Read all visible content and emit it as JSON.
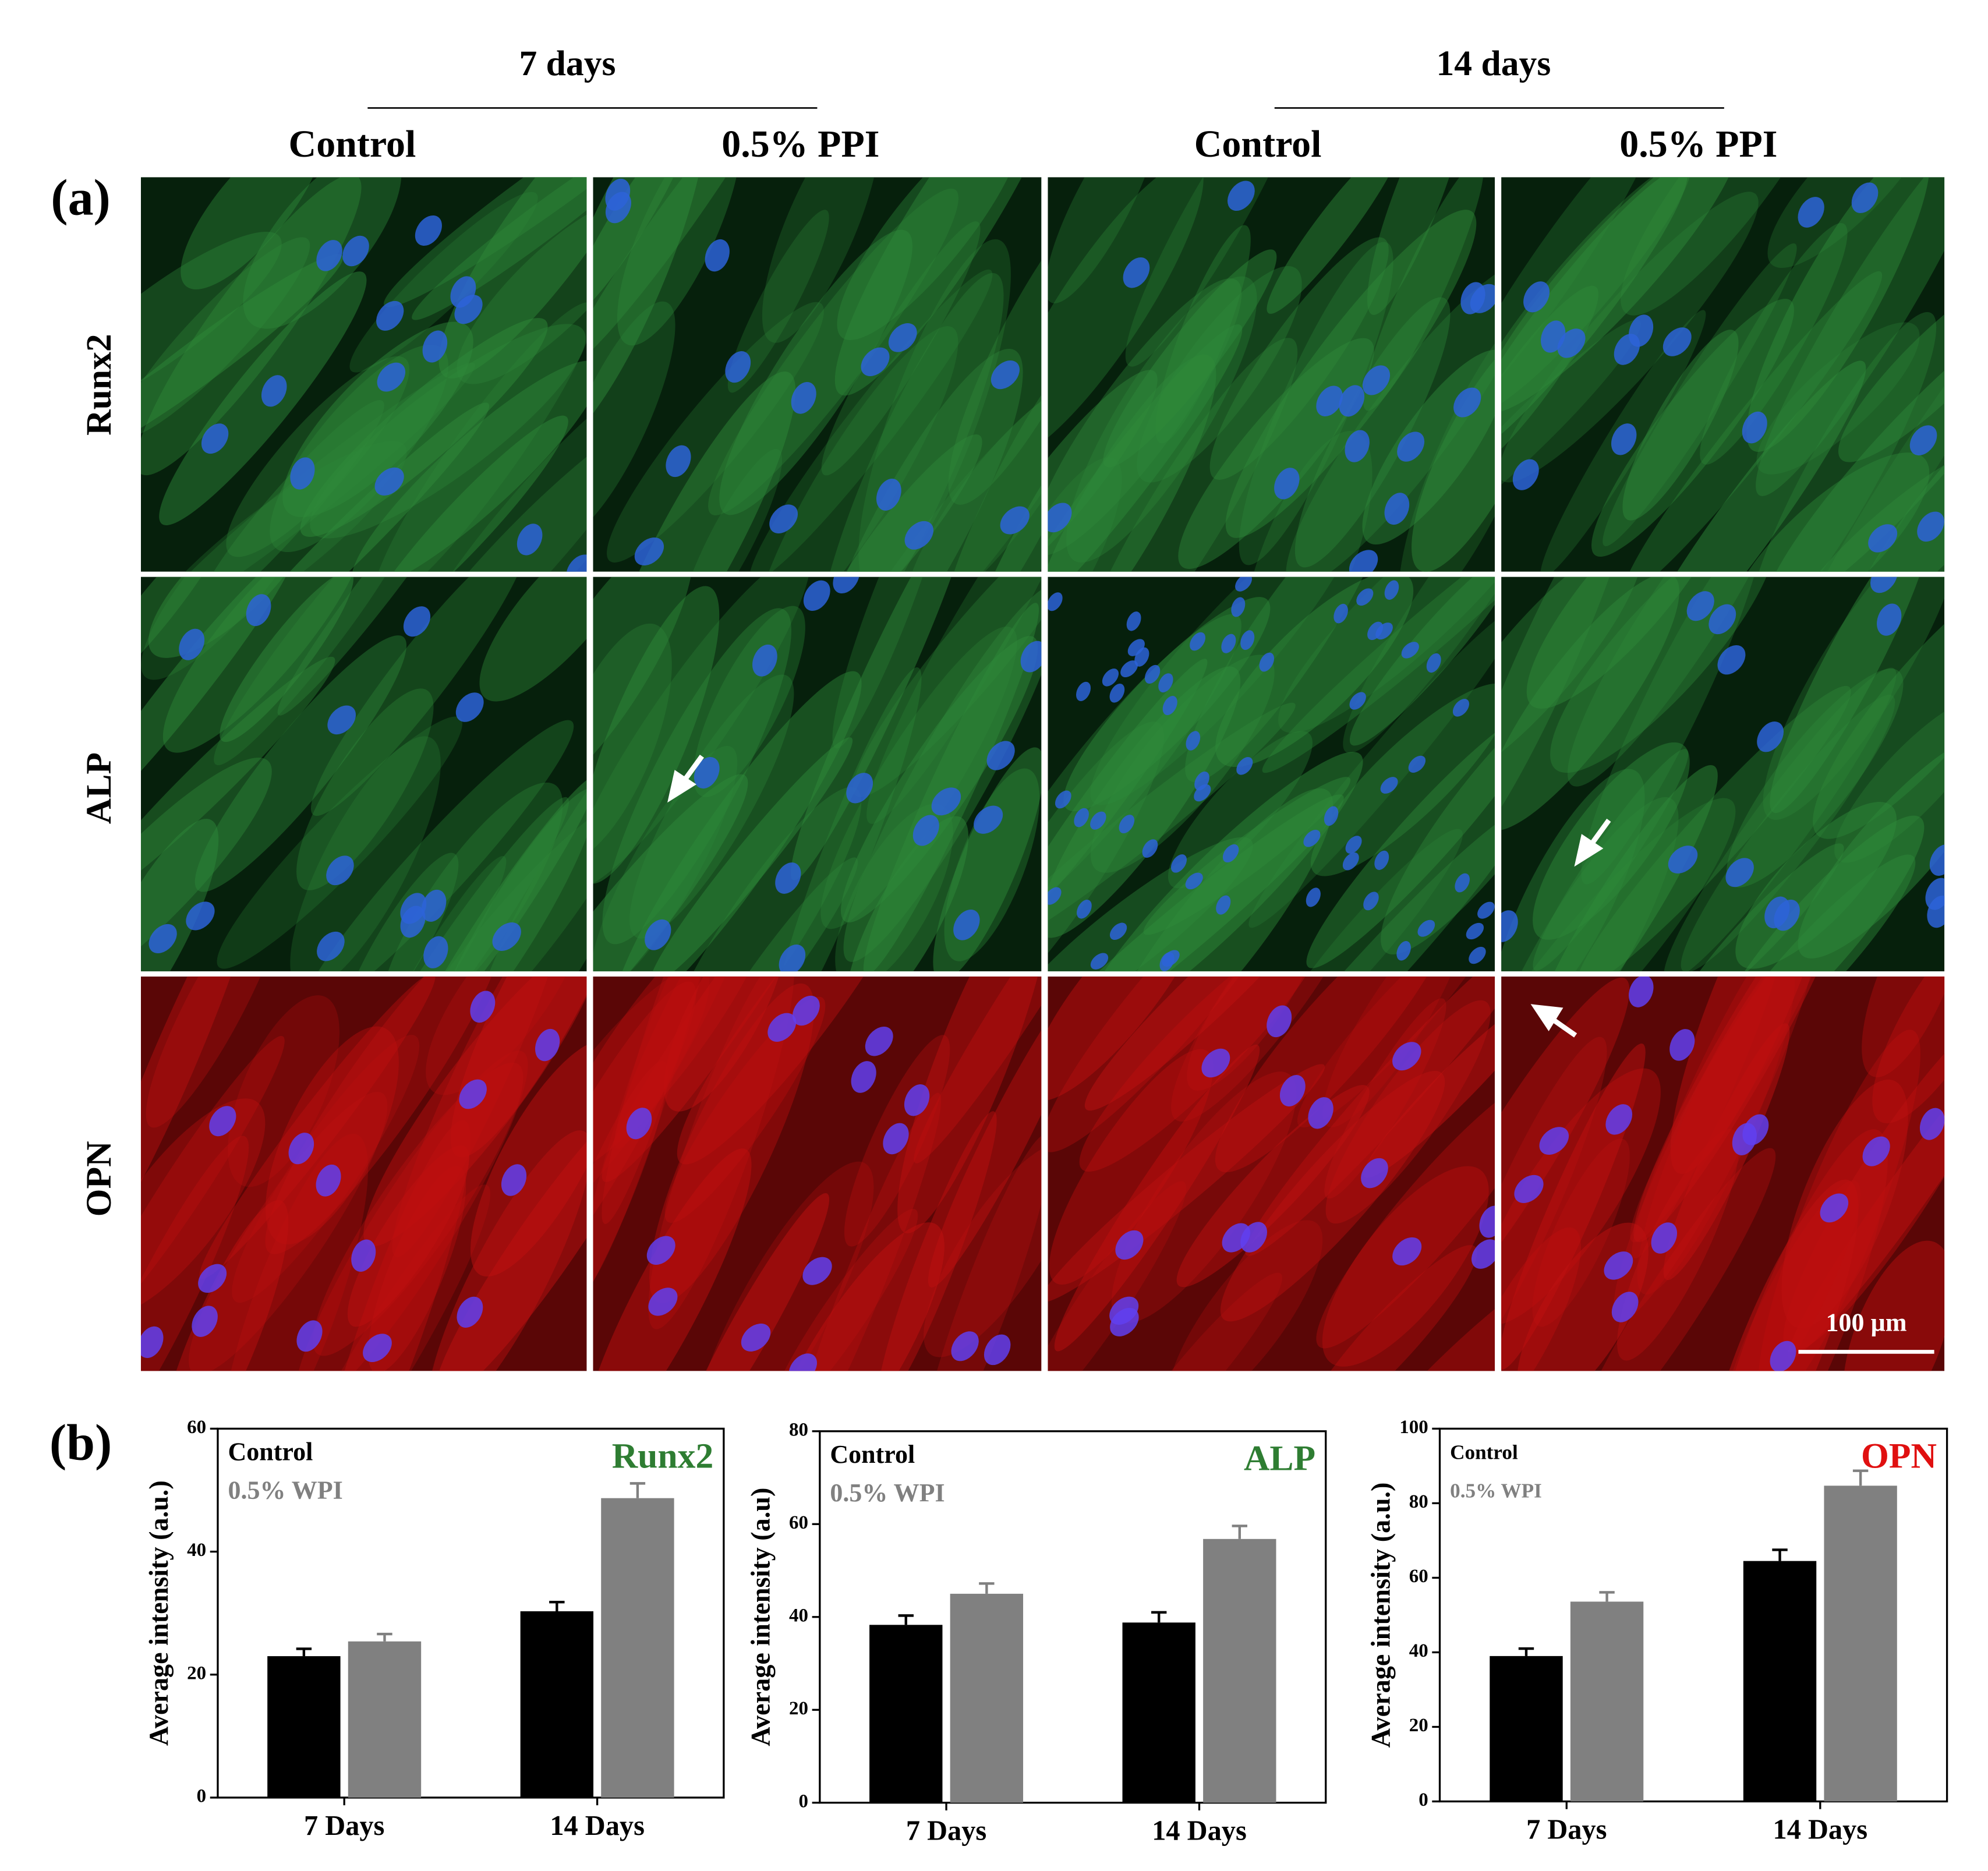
{
  "panel_a": {
    "label": "(a)",
    "time_headers": [
      "7 days",
      "14 days"
    ],
    "column_headers": [
      "Control",
      "0.5% PPI",
      "Control",
      "0.5% PPI"
    ],
    "row_labels": [
      "Runx2",
      "ALP",
      "OPN"
    ],
    "scale_bar": "100 µm"
  },
  "panel_b": {
    "label": "(b)"
  },
  "chart_data": [
    {
      "type": "bar",
      "title": "Runx2",
      "title_color": "#2e7d32",
      "y_label": "Average intensity (a.u.)",
      "categories": [
        "7 Days",
        "14 Days"
      ],
      "ylim": [
        0,
        60
      ],
      "yticks": [
        0,
        20,
        40,
        60
      ],
      "series": [
        {
          "name": "Control",
          "color": "#000000",
          "values": [
            23,
            30.3
          ],
          "errors": [
            1.2,
            1.5
          ]
        },
        {
          "name": "0.5% WPI",
          "color": "#808080",
          "values": [
            25.4,
            48.7
          ],
          "errors": [
            1.2,
            2.4
          ]
        }
      ]
    },
    {
      "type": "bar",
      "title": "ALP",
      "title_color": "#2e7d32",
      "y_label": "Average intensity (a.u)",
      "categories": [
        "7 Days",
        "14 Days"
      ],
      "ylim": [
        0,
        80
      ],
      "yticks": [
        0,
        20,
        40,
        60,
        80
      ],
      "series": [
        {
          "name": "Control",
          "color": "#000000",
          "values": [
            38.3,
            38.8
          ],
          "errors": [
            2,
            2.2
          ]
        },
        {
          "name": "0.5% WPI",
          "color": "#808080",
          "values": [
            45,
            56.8
          ],
          "errors": [
            2.2,
            2.8
          ]
        }
      ]
    },
    {
      "type": "bar",
      "title": "OPN",
      "title_color": "#e01010",
      "y_label": "Average intensity (a.u.)",
      "categories": [
        "7 Days",
        "14 Days"
      ],
      "ylim": [
        0,
        100
      ],
      "yticks": [
        0,
        20,
        40,
        60,
        80,
        100
      ],
      "series": [
        {
          "name": "Control",
          "color": "#000000",
          "values": [
            39,
            64.5
          ],
          "errors": [
            2,
            3
          ]
        },
        {
          "name": "0.5% WPI",
          "color": "#808080",
          "values": [
            53.6,
            84.7
          ],
          "errors": [
            2.5,
            4
          ]
        }
      ]
    }
  ]
}
